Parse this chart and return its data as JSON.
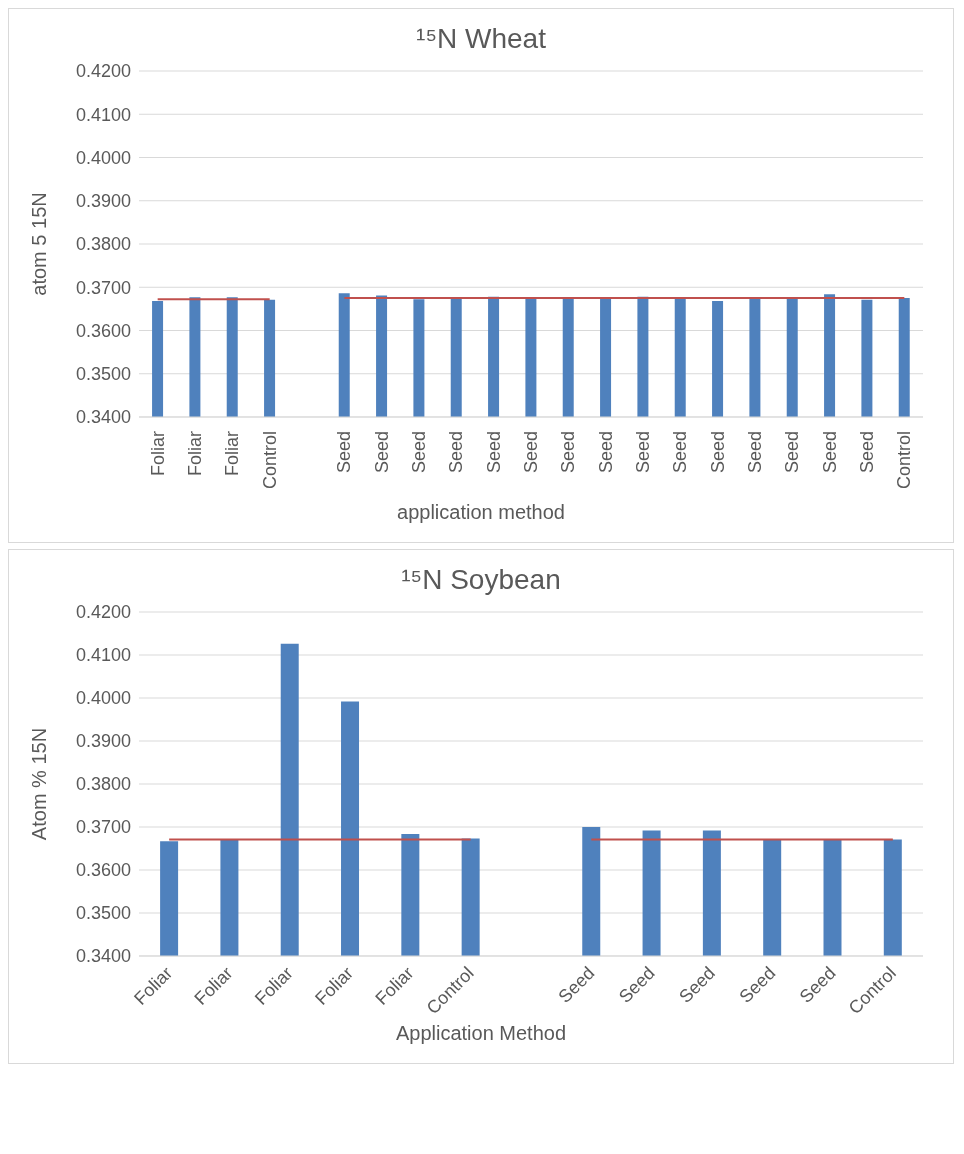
{
  "chart_data": [
    {
      "type": "bar",
      "title": "¹⁵N Wheat",
      "ylabel": "atom 5 15N",
      "xlabel": "application method",
      "categories": [
        "Foliar",
        "Foliar",
        "Foliar",
        "Control",
        null,
        "Seed",
        "Seed",
        "Seed",
        "Seed",
        "Seed",
        "Seed",
        "Seed",
        "Seed",
        "Seed",
        "Seed",
        "Seed",
        "Seed",
        "Seed",
        "Seed",
        "Seed",
        "Control"
      ],
      "series": [
        {
          "color": "#4f81bd",
          "values": [
            0.3668,
            0.3677,
            0.3677,
            0.3671,
            null,
            0.3686,
            0.3681,
            0.3672,
            0.3677,
            0.3678,
            0.3675,
            0.3675,
            0.3674,
            0.3678,
            0.3675,
            0.3668,
            0.3677,
            0.3675,
            0.3684,
            0.3671,
            0.3675
          ]
        },
        {
          "type": "line",
          "color": "#c0504d",
          "values": [
            0.3672,
            0.3672,
            0.3672,
            0.3672,
            null,
            null,
            null,
            null,
            null,
            null,
            null,
            null,
            null,
            null,
            null,
            null,
            null,
            null,
            null,
            null,
            null
          ]
        },
        {
          "type": "line",
          "color": "#c0504d",
          "values": [
            null,
            null,
            null,
            null,
            null,
            0.3675,
            0.3675,
            0.3675,
            0.3675,
            0.3675,
            0.3675,
            0.3675,
            0.3675,
            0.3675,
            0.3675,
            0.3675,
            0.3675,
            0.3675,
            0.3675,
            0.3675,
            0.3675
          ]
        }
      ],
      "ylim": [
        0.34,
        0.42
      ],
      "yticks": [
        {
          "value": 0.34,
          "label": "0.3400"
        },
        {
          "value": 0.35,
          "label": "0.3500"
        },
        {
          "value": 0.36,
          "label": "0.3600"
        },
        {
          "value": 0.37,
          "label": "0.3700"
        },
        {
          "value": 0.38,
          "label": "0.3800"
        },
        {
          "value": 0.39,
          "label": "0.3900"
        },
        {
          "value": 0.4,
          "label": "0.4000"
        },
        {
          "value": 0.41,
          "label": "0.4100"
        },
        {
          "value": 0.42,
          "label": "0.4200"
        }
      ],
      "grid": "y",
      "legend": false
    },
    {
      "type": "bar",
      "title": "¹⁵N Soybean",
      "ylabel": "Atom % 15N",
      "xlabel": "Application Method",
      "categories": [
        "Foliar",
        "Foliar",
        "Foliar",
        "Foliar",
        "Foliar",
        "Control",
        null,
        "Seed",
        "Seed",
        "Seed",
        "Seed",
        "Seed",
        "Control"
      ],
      "series": [
        {
          "color": "#4f81bd",
          "values": [
            0.3667,
            0.367,
            0.4126,
            0.3992,
            0.3684,
            0.3673,
            null,
            0.37,
            0.3692,
            0.3692,
            0.3671,
            0.3671,
            0.3671
          ]
        },
        {
          "type": "line",
          "color": "#c0504d",
          "values": [
            0.3671,
            0.3671,
            0.3671,
            0.3671,
            0.3671,
            0.3671,
            null,
            null,
            null,
            null,
            null,
            null,
            null
          ]
        },
        {
          "type": "line",
          "color": "#c0504d",
          "values": [
            null,
            null,
            null,
            null,
            null,
            null,
            null,
            0.3671,
            0.3671,
            0.3671,
            0.3671,
            0.3671,
            0.3671
          ]
        }
      ],
      "ylim": [
        0.34,
        0.42
      ],
      "yticks": [
        {
          "value": 0.34,
          "label": "0.3400"
        },
        {
          "value": 0.35,
          "label": "0.3500"
        },
        {
          "value": 0.36,
          "label": "0.3600"
        },
        {
          "value": 0.37,
          "label": "0.3700"
        },
        {
          "value": 0.38,
          "label": "0.3800"
        },
        {
          "value": 0.39,
          "label": "0.3900"
        },
        {
          "value": 0.4,
          "label": "0.4000"
        },
        {
          "value": 0.41,
          "label": "0.4100"
        },
        {
          "value": 0.42,
          "label": "0.4200"
        }
      ],
      "grid": "y",
      "legend": false
    }
  ]
}
